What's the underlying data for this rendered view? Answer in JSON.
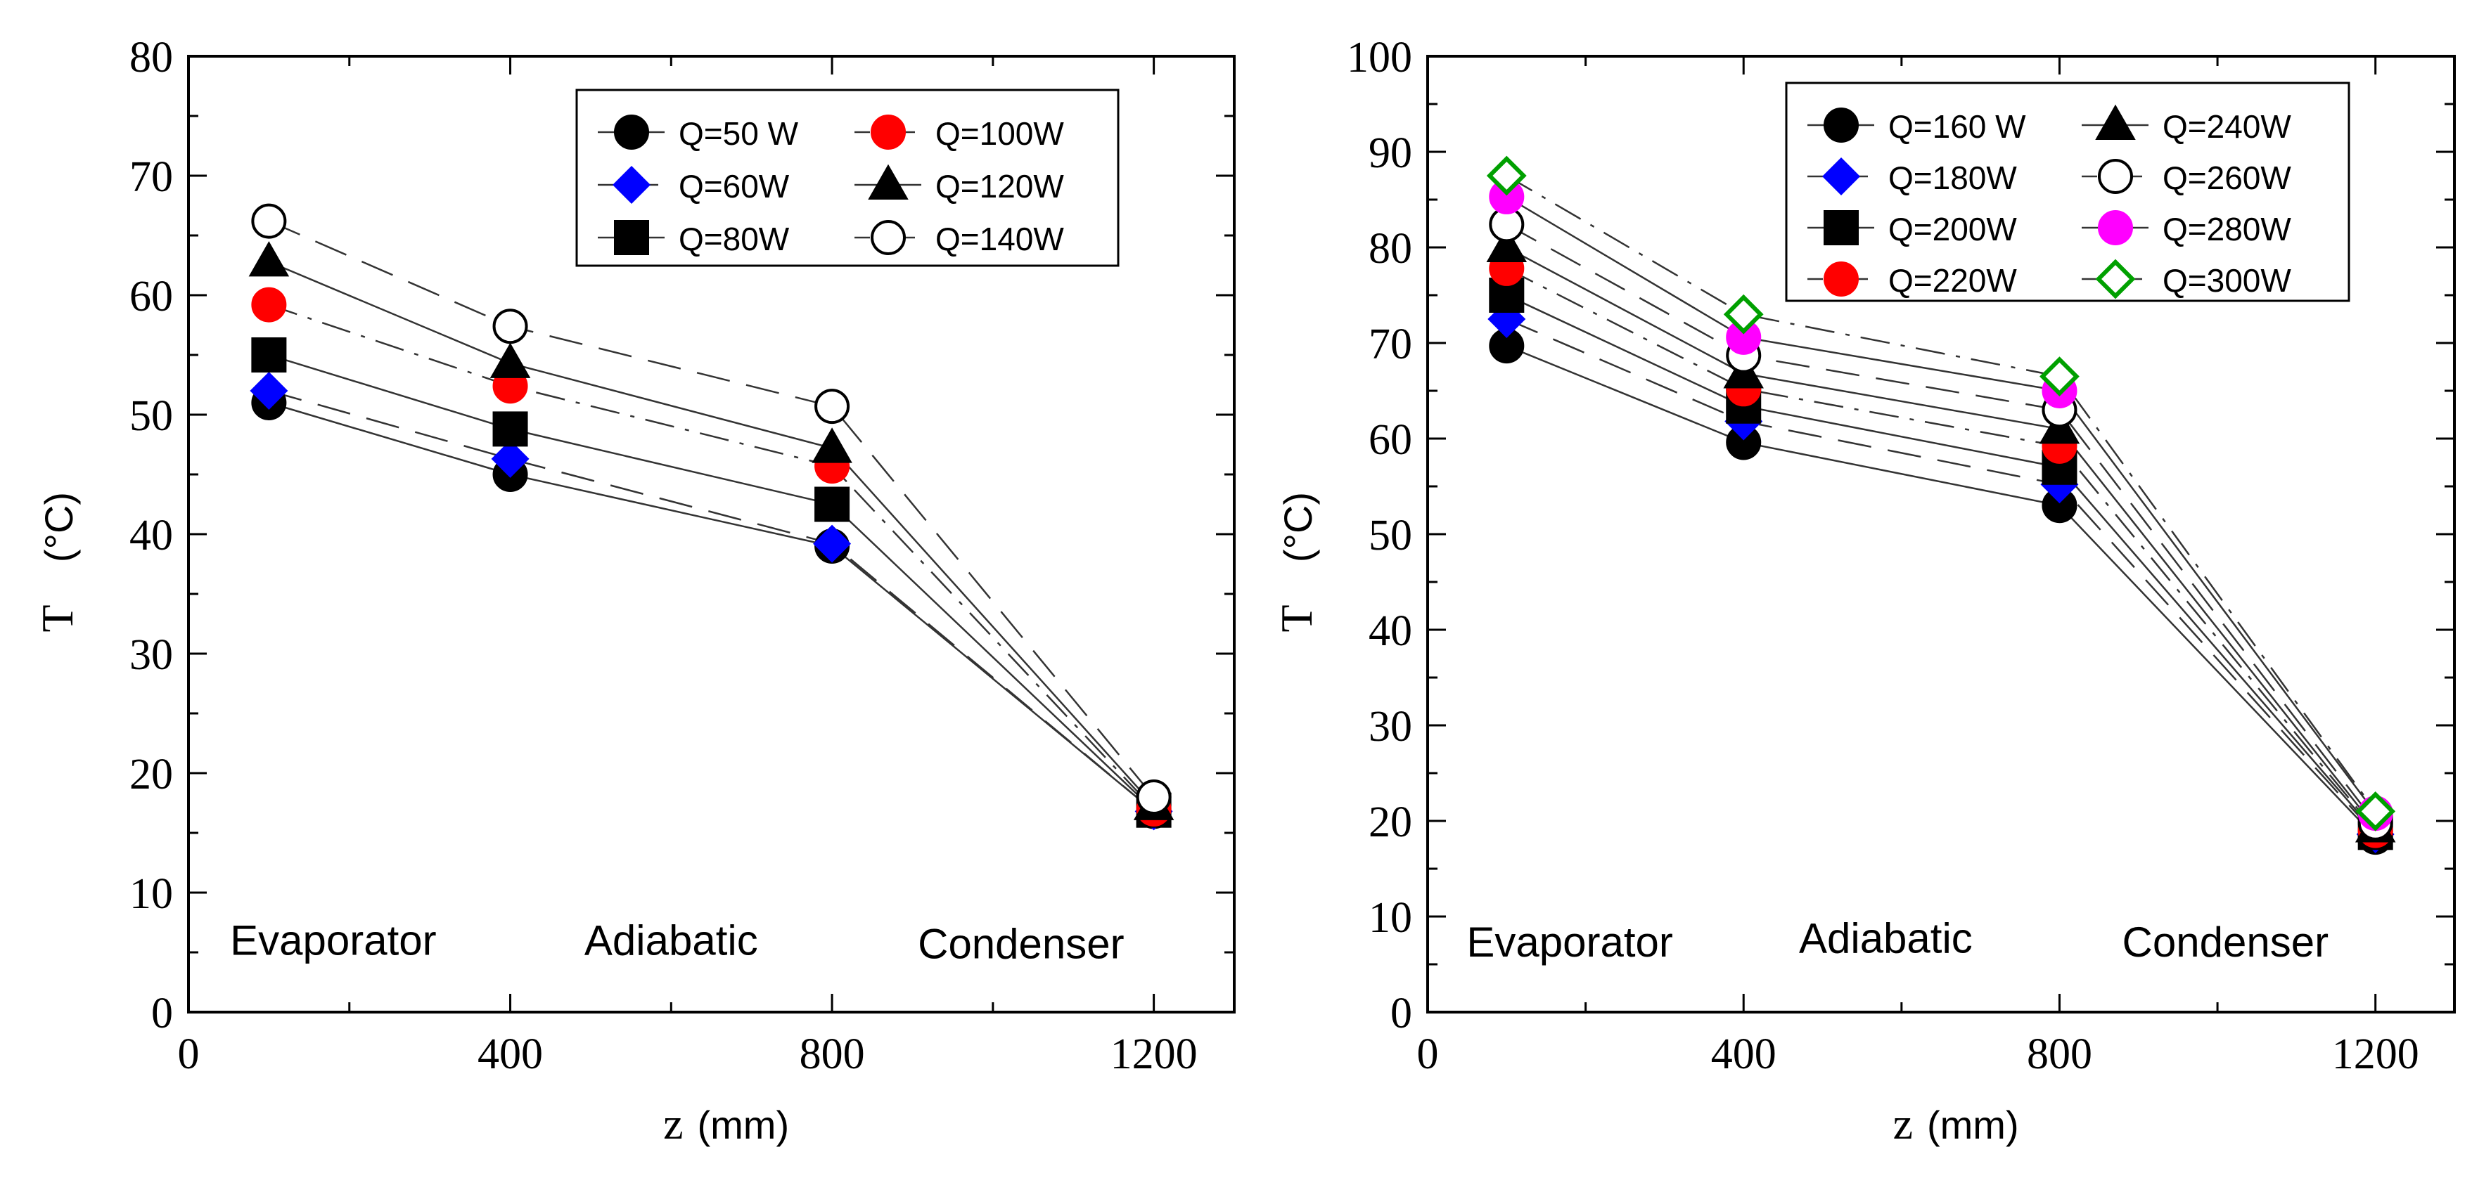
{
  "chart_data": [
    {
      "type": "line",
      "x": [
        100,
        400,
        800,
        1200
      ],
      "xlabel": "z",
      "xlabel_unit": "(mm)",
      "ylabel": "T",
      "ylabel_unit": "(°C)",
      "xlim": [
        0,
        1300
      ],
      "ylim": [
        0,
        80
      ],
      "xticks": [
        0,
        400,
        800,
        1200
      ],
      "xtick_labels": [
        "0",
        "400",
        "800",
        "1200"
      ],
      "yticks": [
        0,
        10,
        20,
        30,
        40,
        50,
        60,
        70,
        80
      ],
      "ytick_labels": [
        "0",
        "10",
        "20",
        "30",
        "40",
        "50",
        "60",
        "70",
        "80"
      ],
      "annotations": [
        {
          "text": "Evaporator",
          "x": 180,
          "y": 4.8
        },
        {
          "text": "Adiabatic",
          "x": 600,
          "y": 4.8
        },
        {
          "text": "Condenser",
          "x": 1035,
          "y": 4.5
        }
      ],
      "legend_position": "top-right",
      "legend_columns": 2,
      "series": [
        {
          "name": "Q=50 W",
          "values": [
            51,
            45,
            39,
            16.8
          ],
          "marker": "circle",
          "filled": true,
          "color": "#000000",
          "line": "solid"
        },
        {
          "name": "Q=60W",
          "values": [
            52,
            46.3,
            39.2,
            16.8
          ],
          "marker": "diamond",
          "filled": true,
          "color": "#0000ff",
          "line": "longdash"
        },
        {
          "name": "Q=80W",
          "values": [
            55,
            48.8,
            42.5,
            16.9
          ],
          "marker": "square",
          "filled": true,
          "color": "#000000",
          "line": "solid"
        },
        {
          "name": "Q=100W",
          "values": [
            59.2,
            52.4,
            45.7,
            17
          ],
          "marker": "circle",
          "filled": true,
          "color": "#ff0000",
          "line": "dashdot"
        },
        {
          "name": "Q=120W",
          "values": [
            62.8,
            54.3,
            47.2,
            17.3
          ],
          "marker": "triangle",
          "filled": true,
          "color": "#000000",
          "line": "solid"
        },
        {
          "name": "Q=140W",
          "values": [
            66.2,
            57.4,
            50.7,
            18
          ],
          "marker": "circle",
          "filled": false,
          "color": "#000000",
          "line": "longdash"
        }
      ]
    },
    {
      "type": "line",
      "x": [
        100,
        400,
        800,
        1200
      ],
      "xlabel": "z",
      "xlabel_unit": "(mm)",
      "ylabel": "T",
      "ylabel_unit": "(°C)",
      "xlim": [
        0,
        1300
      ],
      "ylim": [
        0,
        100
      ],
      "xticks": [
        0,
        400,
        800,
        1200
      ],
      "xtick_labels": [
        "0",
        "400",
        "800",
        "1200"
      ],
      "yticks": [
        0,
        10,
        20,
        30,
        40,
        50,
        60,
        70,
        80,
        90,
        100
      ],
      "ytick_labels": [
        "0",
        "10",
        "20",
        "30",
        "40",
        "50",
        "60",
        "70",
        "80",
        "90",
        "100"
      ],
      "annotations": [
        {
          "text": "Evaporator",
          "x": 180,
          "y": 5.8
        },
        {
          "text": "Adiabatic",
          "x": 580,
          "y": 6.2
        },
        {
          "text": "Condenser",
          "x": 1010,
          "y": 5.8
        }
      ],
      "legend_position": "top-right",
      "legend_columns": 2,
      "series": [
        {
          "name": "Q=160 W",
          "values": [
            69.7,
            59.6,
            53,
            18.3
          ],
          "marker": "circle",
          "filled": true,
          "color": "#000000",
          "line": "solid"
        },
        {
          "name": "Q=180W",
          "values": [
            72.5,
            61.8,
            55.2,
            18.6
          ],
          "marker": "diamond",
          "filled": true,
          "color": "#0000ff",
          "line": "longdash"
        },
        {
          "name": "Q=200W",
          "values": [
            75,
            63.4,
            57,
            18.8
          ],
          "marker": "square",
          "filled": true,
          "color": "#000000",
          "line": "solid"
        },
        {
          "name": "Q=220W",
          "values": [
            77.8,
            65.2,
            59.2,
            19
          ],
          "marker": "circle",
          "filled": true,
          "color": "#ff0000",
          "line": "dashdot"
        },
        {
          "name": "Q=240W",
          "values": [
            80,
            66.8,
            61,
            19.3
          ],
          "marker": "triangle",
          "filled": true,
          "color": "#000000",
          "line": "solid"
        },
        {
          "name": "Q=260W",
          "values": [
            82.4,
            68.7,
            63,
            19.8
          ],
          "marker": "circle",
          "filled": false,
          "color": "#000000",
          "line": "longdash"
        },
        {
          "name": "Q=280W",
          "values": [
            85.3,
            70.6,
            65,
            20.8
          ],
          "marker": "circle",
          "filled": true,
          "color": "#ff00ff",
          "line": "solid"
        },
        {
          "name": "Q=300W",
          "values": [
            87.5,
            73,
            66.5,
            21
          ],
          "marker": "diamond",
          "filled": false,
          "color": "#00a000",
          "line": "dashdot"
        }
      ]
    }
  ]
}
